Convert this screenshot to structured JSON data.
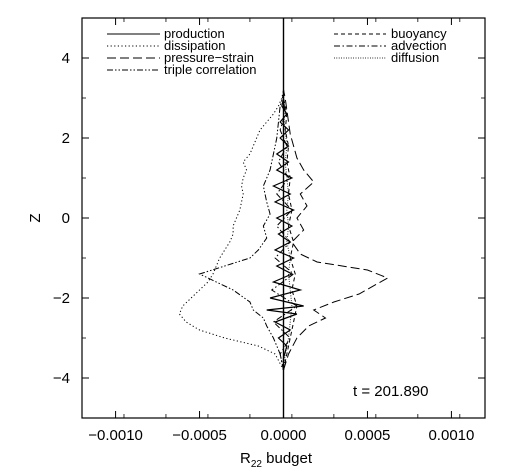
{
  "chart_data": {
    "type": "line",
    "title": "",
    "xlabel_main": "R",
    "xlabel_sub": "22",
    "xlabel_rest": " budget",
    "ylabel": "Z",
    "xlim": [
      -0.0012,
      0.0012
    ],
    "ylim": [
      -5,
      5
    ],
    "x_ticks": [
      -0.001,
      -0.0005,
      0.0,
      0.0005,
      0.001
    ],
    "x_tick_labels": [
      "−0.0010",
      "−0.0005",
      "0.0000",
      "0.0005",
      "0.0010"
    ],
    "y_ticks": [
      -4,
      -2,
      0,
      2,
      4
    ],
    "y_tick_labels": [
      "−4",
      "−2",
      "0",
      "2",
      "4"
    ],
    "annotation": "t = 201.890",
    "legend_left": [
      "production",
      "dissipation",
      "pressure−strain",
      "triple correlation"
    ],
    "legend_right": [
      "buoyancy",
      "advection",
      "diffusion"
    ],
    "series": [
      {
        "name": "production",
        "dash": "solid",
        "points": [
          [
            0,
            -3.8
          ],
          [
            0,
            -3.5
          ],
          [
            2e-05,
            -3.2
          ],
          [
            -3e-05,
            -3.0
          ],
          [
            4e-05,
            -2.8
          ],
          [
            -5e-05,
            -2.6
          ],
          [
            8e-05,
            -2.4
          ],
          [
            -0.0001,
            -2.3
          ],
          [
            0.00012,
            -2.2
          ],
          [
            -8e-05,
            -2.0
          ],
          [
            0.0001,
            -1.8
          ],
          [
            -6e-05,
            -1.6
          ],
          [
            5e-05,
            -1.4
          ],
          [
            -4e-05,
            -1.2
          ],
          [
            6e-05,
            -1.0
          ],
          [
            -5e-05,
            -0.8
          ],
          [
            4e-05,
            -0.6
          ],
          [
            -3e-05,
            -0.4
          ],
          [
            5e-05,
            -0.2
          ],
          [
            -4e-05,
            0
          ],
          [
            6e-05,
            0.2
          ],
          [
            -5e-05,
            0.4
          ],
          [
            4e-05,
            0.6
          ],
          [
            -6e-05,
            0.8
          ],
          [
            5e-05,
            1.0
          ],
          [
            -4e-05,
            1.2
          ],
          [
            3e-05,
            1.4
          ],
          [
            -4e-05,
            1.6
          ],
          [
            3e-05,
            1.8
          ],
          [
            -2e-05,
            2.0
          ],
          [
            3e-05,
            2.2
          ],
          [
            -2e-05,
            2.4
          ],
          [
            2e-05,
            2.6
          ],
          [
            -1e-05,
            2.8
          ],
          [
            0,
            3.0
          ],
          [
            0,
            3.2
          ]
        ]
      },
      {
        "name": "dissipation",
        "dash": "dotted",
        "points": [
          [
            0,
            -3.8
          ],
          [
            -5e-05,
            -3.4
          ],
          [
            -0.00015,
            -3.2
          ],
          [
            -0.00035,
            -3.0
          ],
          [
            -0.0005,
            -2.8
          ],
          [
            -0.00058,
            -2.6
          ],
          [
            -0.00062,
            -2.4
          ],
          [
            -0.0006,
            -2.2
          ],
          [
            -0.00055,
            -2.0
          ],
          [
            -0.0005,
            -1.8
          ],
          [
            -0.00045,
            -1.6
          ],
          [
            -0.00042,
            -1.4
          ],
          [
            -0.0004,
            -1.2
          ],
          [
            -0.00038,
            -1.0
          ],
          [
            -0.00035,
            -0.8
          ],
          [
            -0.00032,
            -0.6
          ],
          [
            -0.0003,
            -0.4
          ],
          [
            -0.0003,
            -0.2
          ],
          [
            -0.00028,
            0
          ],
          [
            -0.00026,
            0.2
          ],
          [
            -0.00025,
            0.4
          ],
          [
            -0.00024,
            0.6
          ],
          [
            -0.00025,
            0.8
          ],
          [
            -0.00024,
            1.0
          ],
          [
            -0.00022,
            1.2
          ],
          [
            -0.00024,
            1.4
          ],
          [
            -0.0002,
            1.6
          ],
          [
            -0.00018,
            1.8
          ],
          [
            -0.00016,
            2.0
          ],
          [
            -0.00014,
            2.2
          ],
          [
            -0.0001,
            2.4
          ],
          [
            -6e-05,
            2.6
          ],
          [
            -3e-05,
            2.8
          ],
          [
            -1e-05,
            3.0
          ],
          [
            0,
            3.2
          ]
        ]
      },
      {
        "name": "pressure−strain",
        "dash": "longdash",
        "points": [
          [
            0,
            -3.8
          ],
          [
            3e-05,
            -3.4
          ],
          [
            8e-05,
            -3.0
          ],
          [
            0.00015,
            -2.7
          ],
          [
            0.00025,
            -2.5
          ],
          [
            0.00018,
            -2.3
          ],
          [
            0.0003,
            -2.1
          ],
          [
            0.00045,
            -1.9
          ],
          [
            0.00062,
            -1.5
          ],
          [
            0.0005,
            -1.3
          ],
          [
            0.0002,
            -1.1
          ],
          [
            0.0001,
            -0.9
          ],
          [
            5e-05,
            -0.6
          ],
          [
            0.00012,
            -0.3
          ],
          [
            8e-05,
            0
          ],
          [
            0.00014,
            0.3
          ],
          [
            0.0001,
            0.6
          ],
          [
            0.00018,
            0.9
          ],
          [
            0.00012,
            1.2
          ],
          [
            8e-05,
            1.5
          ],
          [
            6e-05,
            1.8
          ],
          [
            4e-05,
            2.1
          ],
          [
            3e-05,
            2.4
          ],
          [
            2e-05,
            2.7
          ],
          [
            1e-05,
            3.0
          ],
          [
            0,
            3.2
          ]
        ]
      },
      {
        "name": "triple correlation",
        "dash": "dashdotdot",
        "points": [
          [
            0,
            -3.8
          ],
          [
            -2e-05,
            -3.4
          ],
          [
            -6e-05,
            -3.0
          ],
          [
            -0.0001,
            -2.7
          ],
          [
            -0.00012,
            -2.5
          ],
          [
            -0.00018,
            -2.3
          ],
          [
            -0.0002,
            -2.1
          ],
          [
            -0.0003,
            -1.8
          ],
          [
            -0.0005,
            -1.4
          ],
          [
            -0.00035,
            -1.2
          ],
          [
            -0.0002,
            -1.0
          ],
          [
            -0.00015,
            -0.8
          ],
          [
            -0.0001,
            -0.5
          ],
          [
            -0.00012,
            -0.2
          ],
          [
            -8e-05,
            0.1
          ],
          [
            -0.0001,
            0.4
          ],
          [
            -0.00012,
            0.8
          ],
          [
            -8e-05,
            1.2
          ],
          [
            -6e-05,
            1.6
          ],
          [
            -4e-05,
            2.0
          ],
          [
            -3e-05,
            2.4
          ],
          [
            -2e-05,
            2.8
          ],
          [
            0,
            3.1
          ]
        ]
      },
      {
        "name": "buoyancy",
        "dash": "shortdash",
        "points": [
          [
            0,
            -3.8
          ],
          [
            2e-05,
            -3.4
          ],
          [
            4e-05,
            -3.0
          ],
          [
            6e-05,
            -2.6
          ],
          [
            8e-05,
            -2.2
          ],
          [
            5e-05,
            -1.8
          ],
          [
            7e-05,
            -1.4
          ],
          [
            4e-05,
            -1.0
          ],
          [
            6e-05,
            -0.6
          ],
          [
            3e-05,
            -0.2
          ],
          [
            5e-05,
            0.2
          ],
          [
            3e-05,
            0.6
          ],
          [
            4e-05,
            1.0
          ],
          [
            2e-05,
            1.4
          ],
          [
            3e-05,
            1.8
          ],
          [
            1e-05,
            2.2
          ],
          [
            2e-05,
            2.6
          ],
          [
            0,
            3.0
          ]
        ]
      },
      {
        "name": "advection",
        "dash": "dashdot",
        "points": [
          [
            0,
            -3.8
          ],
          [
            -2e-05,
            -3.4
          ],
          [
            4e-05,
            -3.0
          ],
          [
            -6e-05,
            -2.6
          ],
          [
            8e-05,
            -2.2
          ],
          [
            -7e-05,
            -1.8
          ],
          [
            6e-05,
            -1.4
          ],
          [
            -5e-05,
            -1.0
          ],
          [
            4e-05,
            -0.6
          ],
          [
            -4e-05,
            -0.2
          ],
          [
            5e-05,
            0.2
          ],
          [
            -4e-05,
            0.6
          ],
          [
            3e-05,
            1.0
          ],
          [
            -3e-05,
            1.4
          ],
          [
            2e-05,
            1.8
          ],
          [
            -2e-05,
            2.2
          ],
          [
            1e-05,
            2.6
          ],
          [
            0,
            3.0
          ]
        ]
      },
      {
        "name": "diffusion",
        "dash": "finedot",
        "points": [
          [
            0,
            -3.8
          ],
          [
            1e-05,
            -3.4
          ],
          [
            3e-05,
            -3.0
          ],
          [
            4e-05,
            -2.6
          ],
          [
            5e-05,
            -2.2
          ],
          [
            4e-05,
            -1.8
          ],
          [
            3e-05,
            -1.4
          ],
          [
            4e-05,
            -1.0
          ],
          [
            2e-05,
            -0.6
          ],
          [
            3e-05,
            -0.2
          ],
          [
            2e-05,
            0.2
          ],
          [
            3e-05,
            0.6
          ],
          [
            2e-05,
            1.0
          ],
          [
            1e-05,
            1.4
          ],
          [
            2e-05,
            1.8
          ],
          [
            1e-05,
            2.2
          ],
          [
            0,
            2.6
          ],
          [
            0,
            3.0
          ]
        ]
      }
    ]
  }
}
